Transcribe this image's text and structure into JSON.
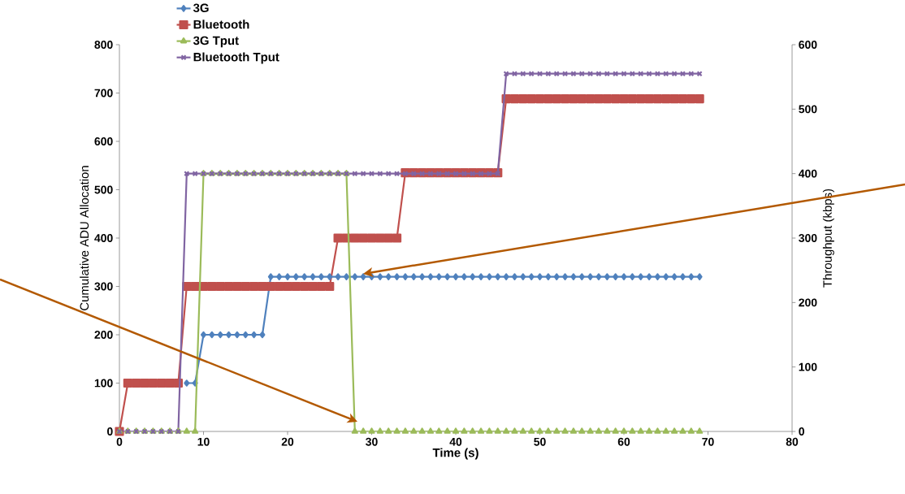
{
  "chart_data": {
    "type": "line",
    "xlabel": "Time (s)",
    "ylabel": "Cumulative ADU Allocation",
    "y2label": "Throughput (kbps)",
    "x": [
      0,
      1,
      2,
      3,
      4,
      5,
      6,
      7,
      8,
      9,
      10,
      11,
      12,
      13,
      14,
      15,
      16,
      17,
      18,
      19,
      20,
      21,
      22,
      23,
      24,
      25,
      26,
      27,
      28,
      29,
      30,
      31,
      32,
      33,
      34,
      35,
      36,
      37,
      38,
      39,
      40,
      41,
      42,
      43,
      44,
      45,
      46,
      47,
      48,
      49,
      50,
      51,
      52,
      53,
      54,
      55,
      56,
      57,
      58,
      59,
      60,
      61,
      62,
      63,
      64,
      65,
      66,
      67,
      68,
      69
    ],
    "xlim": [
      0,
      80
    ],
    "xticks": [
      0,
      10,
      20,
      30,
      40,
      50,
      60,
      70,
      80
    ],
    "ylim": [
      0,
      800
    ],
    "yticks": [
      0,
      100,
      200,
      300,
      400,
      500,
      600,
      700,
      800
    ],
    "y2lim": [
      0,
      600
    ],
    "y2ticks": [
      0,
      100,
      200,
      300,
      400,
      500,
      600
    ],
    "grid": false,
    "legend": "top left",
    "line_style": "solid",
    "series": [
      {
        "name": "3G",
        "color": "#4f81bd",
        "marker": "diamond",
        "axis": "y",
        "values": [
          null,
          null,
          null,
          null,
          null,
          null,
          null,
          null,
          100,
          100,
          200,
          200,
          200,
          200,
          200,
          200,
          200,
          200,
          320,
          320,
          320,
          320,
          320,
          320,
          320,
          320,
          320,
          320,
          320,
          320,
          320,
          320,
          320,
          320,
          320,
          320,
          320,
          320,
          320,
          320,
          320,
          320,
          320,
          320,
          320,
          320,
          320,
          320,
          320,
          320,
          320,
          320,
          320,
          320,
          320,
          320,
          320,
          320,
          320,
          320,
          320,
          320,
          320,
          320,
          320,
          320,
          320,
          320,
          320,
          320
        ]
      },
      {
        "name": "Bluetooth",
        "color": "#c0504d",
        "marker": "square",
        "axis": "y",
        "values": [
          0,
          100,
          100,
          100,
          100,
          100,
          100,
          100,
          300,
          300,
          300,
          300,
          300,
          300,
          300,
          300,
          300,
          300,
          300,
          300,
          300,
          300,
          300,
          300,
          300,
          300,
          400,
          400,
          400,
          400,
          400,
          400,
          400,
          400,
          535,
          535,
          535,
          535,
          535,
          535,
          535,
          535,
          535,
          535,
          535,
          535,
          688,
          688,
          688,
          688,
          688,
          688,
          688,
          688,
          688,
          688,
          688,
          688,
          688,
          688,
          688,
          688,
          688,
          688,
          688,
          688,
          688,
          688,
          688,
          688
        ]
      },
      {
        "name": "3G Tput",
        "color": "#9bbb59",
        "marker": "triangle",
        "axis": "y2",
        "values": [
          0,
          0,
          0,
          0,
          0,
          0,
          0,
          0,
          0,
          0,
          400,
          400,
          400,
          400,
          400,
          400,
          400,
          400,
          400,
          400,
          400,
          400,
          400,
          400,
          400,
          400,
          400,
          400,
          0,
          0,
          0,
          0,
          0,
          0,
          0,
          0,
          0,
          0,
          0,
          0,
          0,
          0,
          0,
          0,
          0,
          0,
          0,
          0,
          0,
          0,
          0,
          0,
          0,
          0,
          0,
          0,
          0,
          0,
          0,
          0,
          0,
          0,
          0,
          0,
          0,
          0,
          0,
          0,
          0,
          0
        ]
      },
      {
        "name": "Bluetooth Tput",
        "color": "#8064a2",
        "marker": "cross",
        "axis": "y2",
        "values": [
          0,
          0,
          0,
          0,
          0,
          0,
          0,
          0,
          400,
          400,
          400,
          400,
          400,
          400,
          400,
          400,
          400,
          400,
          400,
          400,
          400,
          400,
          400,
          400,
          400,
          400,
          400,
          400,
          400,
          400,
          400,
          400,
          400,
          400,
          400,
          400,
          400,
          400,
          400,
          400,
          400,
          400,
          400,
          400,
          400,
          400,
          555,
          555,
          555,
          555,
          555,
          555,
          555,
          555,
          555,
          555,
          555,
          555,
          555,
          555,
          555,
          555,
          555,
          555,
          555,
          555,
          555,
          555,
          555,
          555
        ]
      }
    ]
  }
}
